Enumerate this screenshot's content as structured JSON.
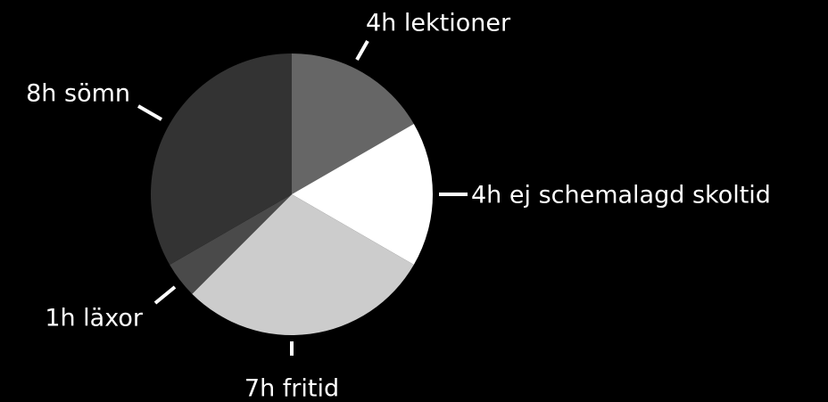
{
  "chart_data": {
    "type": "pie",
    "categories": [
      "4h lektioner",
      "4h ej schemalagd skoltid",
      "7h fritid",
      "1h läxor",
      "8h sömn"
    ],
    "values": [
      4,
      4,
      7,
      1,
      8
    ],
    "colors": [
      "#666666",
      "#ffffff",
      "#cccccc",
      "#4a4a4a",
      "#333333"
    ]
  }
}
